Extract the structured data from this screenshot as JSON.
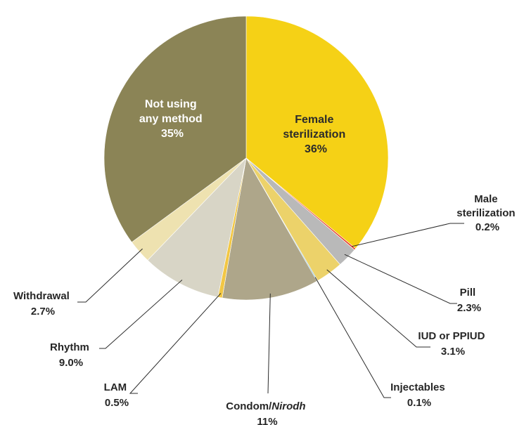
{
  "chart_data": {
    "type": "pie",
    "title": "",
    "start_angle_deg": 90,
    "direction": "clockwise",
    "slices": [
      {
        "name": "Female sterilization",
        "name_line1": "Female",
        "name_line2": "sterilization",
        "label": "36%",
        "value": 36.0,
        "color": "#f5d116"
      },
      {
        "name": "Male sterilization",
        "name_line1": "Male",
        "name_line2": "sterilization",
        "label": "0.2%",
        "value": 0.2,
        "color": "#e8402a"
      },
      {
        "name": "Pill",
        "label": "2.3%",
        "value": 2.3,
        "color": "#b9b9b9"
      },
      {
        "name": "IUD or PPIUD",
        "label": "3.1%",
        "value": 3.1,
        "color": "#ecd26a"
      },
      {
        "name": "Injectables",
        "label": "0.1%",
        "value": 0.1,
        "color": "#5aa9d6"
      },
      {
        "name": "Condom/Nirodh",
        "name_plain": "Condom/",
        "name_italic": "Nirodh",
        "label": "11%",
        "value": 11.0,
        "color": "#aea68a"
      },
      {
        "name": "LAM",
        "label": "0.5%",
        "value": 0.5,
        "color": "#f2c744"
      },
      {
        "name": "Rhythm",
        "label": "9.0%",
        "value": 9.0,
        "color": "#d8d5c6"
      },
      {
        "name": "Withdrawal",
        "label": "2.7%",
        "value": 2.7,
        "color": "#eee2b0"
      },
      {
        "name": "Not using any method",
        "name_line1": "Not using",
        "name_line2": "any method",
        "label": "35%",
        "value": 35.1,
        "color": "#8b8456"
      }
    ]
  }
}
